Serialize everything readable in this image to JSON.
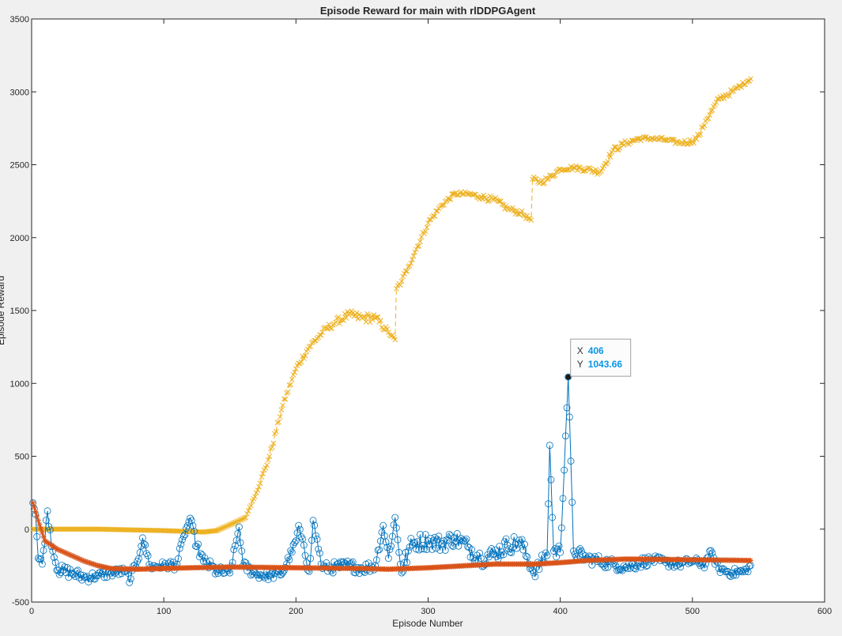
{
  "window": {
    "background": "#f0f0f0"
  },
  "chart_data": {
    "type": "line",
    "title": "Episode Reward for main with rlDDPGAgent",
    "xlabel": "Episode Number",
    "ylabel": "Episode Reward",
    "xlim": [
      0,
      600
    ],
    "ylim": [
      -500,
      3500
    ],
    "xticks": [
      "0",
      "100",
      "200",
      "300",
      "400",
      "500",
      "600"
    ],
    "yticks": [
      "-500",
      "0",
      "500",
      "1000",
      "1500",
      "2000",
      "2500",
      "3000",
      "3500"
    ],
    "grid": false,
    "legend": "none",
    "x_range_plotted": [
      1,
      544
    ],
    "series": [
      {
        "role": "episode-reward",
        "color": "#0072bd",
        "marker": "circle",
        "line": "solid",
        "keypoints": {
          "x": [
            1,
            3,
            5,
            8,
            12,
            16,
            20,
            30,
            40,
            50,
            60,
            70,
            75,
            80,
            84,
            90,
            100,
            110,
            115,
            120,
            125,
            130,
            140,
            150,
            157,
            160,
            170,
            180,
            190,
            200,
            202,
            210,
            213,
            220,
            230,
            240,
            250,
            260,
            266,
            270,
            275,
            280,
            285,
            290,
            300,
            310,
            320,
            330,
            340,
            350,
            360,
            370,
            380,
            390,
            392,
            395,
            400,
            406,
            410,
            420,
            430,
            440,
            450,
            460,
            470,
            480,
            490,
            500,
            510,
            513,
            520,
            530,
            540,
            544
          ],
          "y": [
            180,
            100,
            -200,
            -240,
            125,
            -150,
            -280,
            -300,
            -330,
            -320,
            -300,
            -290,
            -340,
            -220,
            -60,
            -260,
            -250,
            -240,
            -50,
            75,
            -120,
            -220,
            -290,
            -300,
            15,
            -250,
            -310,
            -320,
            -300,
            -80,
            25,
            -290,
            60,
            -270,
            -260,
            -250,
            -270,
            -250,
            25,
            -200,
            80,
            -300,
            -150,
            -90,
            -80,
            -100,
            -60,
            -120,
            -200,
            -170,
            -110,
            -90,
            -300,
            -180,
            575,
            -150,
            -160,
            1043.66,
            -150,
            -200,
            -220,
            -240,
            -260,
            -230,
            -210,
            -230,
            -240,
            -220,
            -240,
            -150,
            -270,
            -300,
            -290,
            -250
          ]
        },
        "variance": [
          0,
          0,
          40,
          40,
          40,
          40,
          40,
          40,
          40,
          30,
          30,
          30,
          40,
          40,
          20,
          30,
          30,
          40,
          20,
          20,
          40,
          40,
          40,
          30,
          20,
          40,
          30,
          30,
          30,
          20,
          20,
          40,
          20,
          40,
          40,
          40,
          40,
          40,
          20,
          60,
          20,
          40,
          80,
          60,
          60,
          60,
          60,
          60,
          60,
          60,
          60,
          60,
          40,
          60,
          20,
          60,
          60,
          20,
          50,
          40,
          40,
          40,
          40,
          40,
          30,
          30,
          30,
          30,
          30,
          20,
          30,
          30,
          30,
          20
        ]
      },
      {
        "role": "average-reward",
        "color": "#d95319",
        "marker": "asterisk",
        "line": "solid",
        "keypoints": {
          "x": [
            1,
            5,
            10,
            20,
            30,
            40,
            50,
            60,
            80,
            100,
            120,
            150,
            200,
            250,
            270,
            300,
            330,
            350,
            380,
            400,
            420,
            450,
            500,
            544
          ],
          "y": [
            180,
            60,
            -80,
            -140,
            -180,
            -220,
            -250,
            -270,
            -275,
            -270,
            -265,
            -260,
            -265,
            -270,
            -275,
            -265,
            -250,
            -240,
            -240,
            -230,
            -215,
            -205,
            -210,
            -215
          ]
        }
      },
      {
        "role": "q0",
        "color": "#edb120",
        "marker": "cross",
        "line": "dashed",
        "keypoints": {
          "x": [
            1,
            50,
            100,
            130,
            140,
            155,
            162,
            165,
            170,
            180,
            190,
            200,
            210,
            220,
            230,
            240,
            250,
            260,
            270,
            275,
            276,
            280,
            285,
            290,
            300,
            310,
            320,
            330,
            340,
            350,
            360,
            370,
            378,
            379,
            385,
            390,
            400,
            410,
            420,
            430,
            440,
            450,
            460,
            470,
            480,
            490,
            500,
            505,
            510,
            520,
            530,
            544
          ],
          "y": [
            0,
            0,
            -10,
            -20,
            -10,
            50,
            80,
            150,
            250,
            500,
            850,
            1100,
            1250,
            1350,
            1420,
            1470,
            1450,
            1450,
            1350,
            1300,
            1650,
            1700,
            1800,
            1900,
            2100,
            2220,
            2300,
            2300,
            2280,
            2260,
            2200,
            2170,
            2120,
            2400,
            2380,
            2400,
            2470,
            2480,
            2470,
            2450,
            2600,
            2650,
            2680,
            2680,
            2670,
            2650,
            2660,
            2700,
            2800,
            2950,
            3000,
            3090
          ]
        },
        "variance": [
          0,
          0,
          0,
          0,
          0,
          0,
          0,
          10,
          10,
          20,
          20,
          20,
          20,
          25,
          25,
          30,
          35,
          30,
          20,
          10,
          20,
          20,
          20,
          20,
          20,
          15,
          15,
          15,
          20,
          20,
          20,
          20,
          10,
          20,
          20,
          20,
          15,
          15,
          20,
          20,
          20,
          20,
          15,
          15,
          15,
          15,
          20,
          20,
          20,
          20,
          20,
          10
        ]
      }
    ],
    "datatip": {
      "x_label": "X",
      "y_label": "Y",
      "x_value": "406",
      "y_value": "1043.66"
    }
  }
}
